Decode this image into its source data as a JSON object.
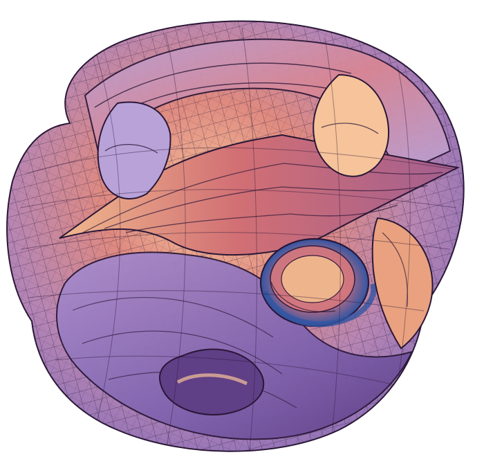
{
  "image": {
    "background_color": "#ffffff",
    "palette": {
      "purple_light": "#b8a2d8",
      "purple_mid": "#8f72b8",
      "purple_dark": "#5f3f86",
      "rose": "#cc6e7d",
      "coral": "#e88b74",
      "peach": "#f6c39a",
      "blue": "#6f85d9",
      "deep_blue": "#3155a3",
      "mesh_line": "#2a1737"
    }
  }
}
